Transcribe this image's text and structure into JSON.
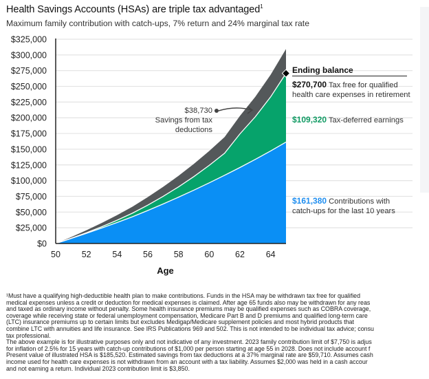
{
  "header": {
    "title": "Health Savings Accounts (HSAs) are triple tax advantaged",
    "title_sup": "1",
    "subtitle": "Maximum family contribution with catch-ups, 7% return and 24% marginal tax rate"
  },
  "chart_data": {
    "type": "area",
    "stacked": true,
    "title": "Health Savings Accounts (HSAs) are triple tax advantaged",
    "subtitle": "Maximum family contribution with catch-ups, 7% return and 24% marginal tax rate",
    "xlabel": "Age",
    "ylabel": "",
    "x": [
      50,
      51,
      52,
      53,
      54,
      55,
      56,
      57,
      58,
      59,
      60,
      61,
      62,
      63,
      64,
      65
    ],
    "xlim": [
      50,
      65
    ],
    "xticks": [
      "50",
      "52",
      "54",
      "56",
      "58",
      "60",
      "62",
      "64"
    ],
    "xtick_values": [
      50,
      52,
      54,
      56,
      58,
      60,
      62,
      64
    ],
    "ylim": [
      0,
      325000
    ],
    "yticks": [
      "$0",
      "$25,000",
      "$50,000",
      "$75,000",
      "$100,000",
      "$125,000",
      "$150,000",
      "$175,000",
      "$200,000",
      "$225,000",
      "$250,000",
      "$275,000",
      "$300,000",
      "$325,000"
    ],
    "ytick_values": [
      0,
      25000,
      50000,
      75000,
      100000,
      125000,
      150000,
      175000,
      200000,
      225000,
      250000,
      275000,
      300000,
      325000
    ],
    "grid": "horizontal",
    "series": [
      {
        "name": "Contributions with catch-ups for the last 10 years",
        "color": "#0a8ff5",
        "values": [
          0,
          7900,
          16100,
          24600,
          33400,
          42500,
          52500,
          62900,
          73700,
          84900,
          96500,
          108500,
          120900,
          133800,
          147300,
          161380
        ]
      },
      {
        "name": "Tax-deferred earnings",
        "color": "#06a36b",
        "values": [
          0,
          300,
          1000,
          2100,
          3700,
          5800,
          8600,
          12100,
          16400,
          21600,
          27800,
          35100,
          53500,
          67800,
          86000,
          109320
        ]
      },
      {
        "name": "Savings from tax deductions",
        "color": "#54585a",
        "values": [
          0,
          1900,
          3900,
          6000,
          8100,
          10300,
          12700,
          15100,
          17600,
          20200,
          22900,
          25700,
          28600,
          31800,
          35200,
          38730
        ]
      }
    ],
    "annotations": [
      {
        "label": "Ending balance",
        "value": "$270,700",
        "text": "Tax free for qualified health care expenses in retirement",
        "marker": "diamond",
        "x": 65,
        "y": 270700
      },
      {
        "value": "$109,320",
        "text": "Tax-deferred earnings",
        "series": "Tax-deferred earnings"
      },
      {
        "value": "$161,380",
        "text": "Contributions with catch-ups for the last 10 years",
        "series": "Contributions with catch-ups for the last 10 years"
      },
      {
        "value": "$38,730",
        "text": "Savings from tax deductions",
        "series": "Savings from tax deductions",
        "arrow": true
      }
    ]
  },
  "annotations": {
    "ending_title": "Ending balance",
    "ending_value": "$270,700",
    "ending_text_1": "Tax free for qualified",
    "ending_text_2": "health care expenses in retirement",
    "earnings_value": "$109,320",
    "earnings_text": "Tax-deferred earnings",
    "contrib_value": "$161,380",
    "contrib_text_1": "Contributions with",
    "contrib_text_2": "catch-ups for the last 10 years",
    "savings_value": "$38,730",
    "savings_text_1": "Savings from tax",
    "savings_text_2": "deductions"
  },
  "colors": {
    "contributions": "#0a8ff5",
    "earnings": "#06a36b",
    "savings": "#54585a",
    "earnings_text": "#109a63",
    "contrib_text": "#1f8ef0"
  },
  "footnote": {
    "lines": [
      "¹Must have a qualifying high-deductible health plan to make contributions. Funds in the HSA may be withdrawn tax free for qualified",
      "medical expenses unless a credit or deduction for medical expenses is claimed. After age 65 funds also may be withdrawn for any reas",
      "and taxed as ordinary income without penalty. Some health insurance premiums may be qualified expenses such as COBRA coverage,",
      "coverage while receiving state or federal unemployment compensation, Medicare Part B and D premiums and qualified long-term care",
      "(LTC) insurance premiums up to certain limits but excludes Medigap/Medicare supplement policies and most hybrid products that",
      "combine LTC with annuities and life insurance. See IRS Publications 969 and 502. This is not intended to be individual tax advice; consu",
      "tax professional.",
      "The above example is for illustrative purposes only and not indicative of any investment. 2023 family contribution limit of $7,750 is adjus",
      "for inflation of 2.5% for 15 years with catch-up contributions of $1,000 per person starting at age 55 in 2028. Does not include account f",
      "Present value of illustrated HSA is $185,520. Estimated savings from tax deductions at a 37% marginal rate are $59,710. Assumes cash",
      "income used for health care expenses is not withdrawn from an account with a tax liability. Assumes $2,000 was held in a cash accour",
      "and not earning a return. Individual 2023 contribution limit is $3,850."
    ]
  }
}
